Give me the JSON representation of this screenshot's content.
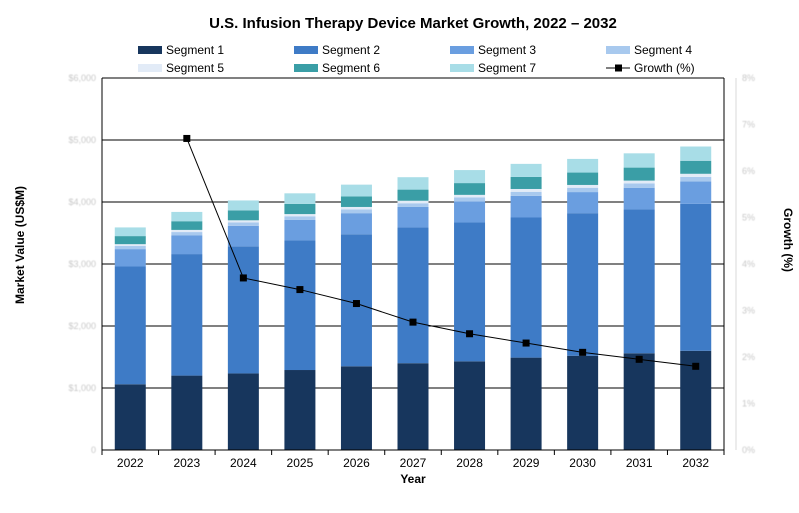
{
  "chart_data": {
    "type": "bar",
    "stacked": true,
    "title": "U.S. Infusion Therapy Device Market Growth, 2022 – 2032",
    "xlabel": "Year",
    "ylabel": "Market Value (US$M)",
    "y2label": "Growth (%)",
    "categories": [
      "2022",
      "2023",
      "2024",
      "2025",
      "2026",
      "2027",
      "2028",
      "2029",
      "2030",
      "2031",
      "2032"
    ],
    "ylim": [
      0,
      6000
    ],
    "y2lim": [
      0,
      8
    ],
    "yticks_text": [
      "0",
      "$1,000",
      "$2,000",
      "$3,000",
      "$4,000",
      "$5,000",
      "$6,000"
    ],
    "y2ticks_text": [
      "0%",
      "1%",
      "2%",
      "3%",
      "4%",
      "5%",
      "6%",
      "7%",
      "8%"
    ],
    "grid": true,
    "legend_position": "top",
    "series": [
      {
        "name": "Segment 1",
        "color": "#17365d",
        "values": [
          1060,
          1200,
          1235,
          1290,
          1350,
          1400,
          1430,
          1490,
          1520,
          1560,
          1600
        ]
      },
      {
        "name": "Segment 2",
        "color": "#3e7bc6",
        "values": [
          1900,
          1960,
          2050,
          2090,
          2130,
          2190,
          2240,
          2260,
          2300,
          2320,
          2370
        ]
      },
      {
        "name": "Segment 3",
        "color": "#6a9ee0",
        "values": [
          280,
          300,
          330,
          330,
          340,
          330,
          340,
          350,
          340,
          350,
          360
        ]
      },
      {
        "name": "Segment 4",
        "color": "#a8c9ee",
        "values": [
          50,
          55,
          55,
          60,
          60,
          60,
          65,
          65,
          70,
          70,
          75
        ]
      },
      {
        "name": "Segment 5",
        "color": "#e2ebf7",
        "values": [
          30,
          35,
          35,
          35,
          40,
          40,
          40,
          45,
          45,
          45,
          50
        ]
      },
      {
        "name": "Segment 6",
        "color": "#3a9ea6",
        "values": [
          130,
          140,
          160,
          165,
          170,
          180,
          190,
          195,
          200,
          210,
          210
        ]
      },
      {
        "name": "Segment 7",
        "color": "#a8dde7",
        "values": [
          140,
          150,
          160,
          170,
          190,
          200,
          210,
          210,
          220,
          230,
          230
        ]
      }
    ],
    "line_series": {
      "name": "Growth (%)",
      "axis": "right",
      "color": "#000000",
      "values": [
        null,
        6.7,
        3.7,
        3.45,
        3.15,
        2.75,
        2.5,
        2.3,
        2.1,
        1.95,
        1.8
      ]
    }
  }
}
